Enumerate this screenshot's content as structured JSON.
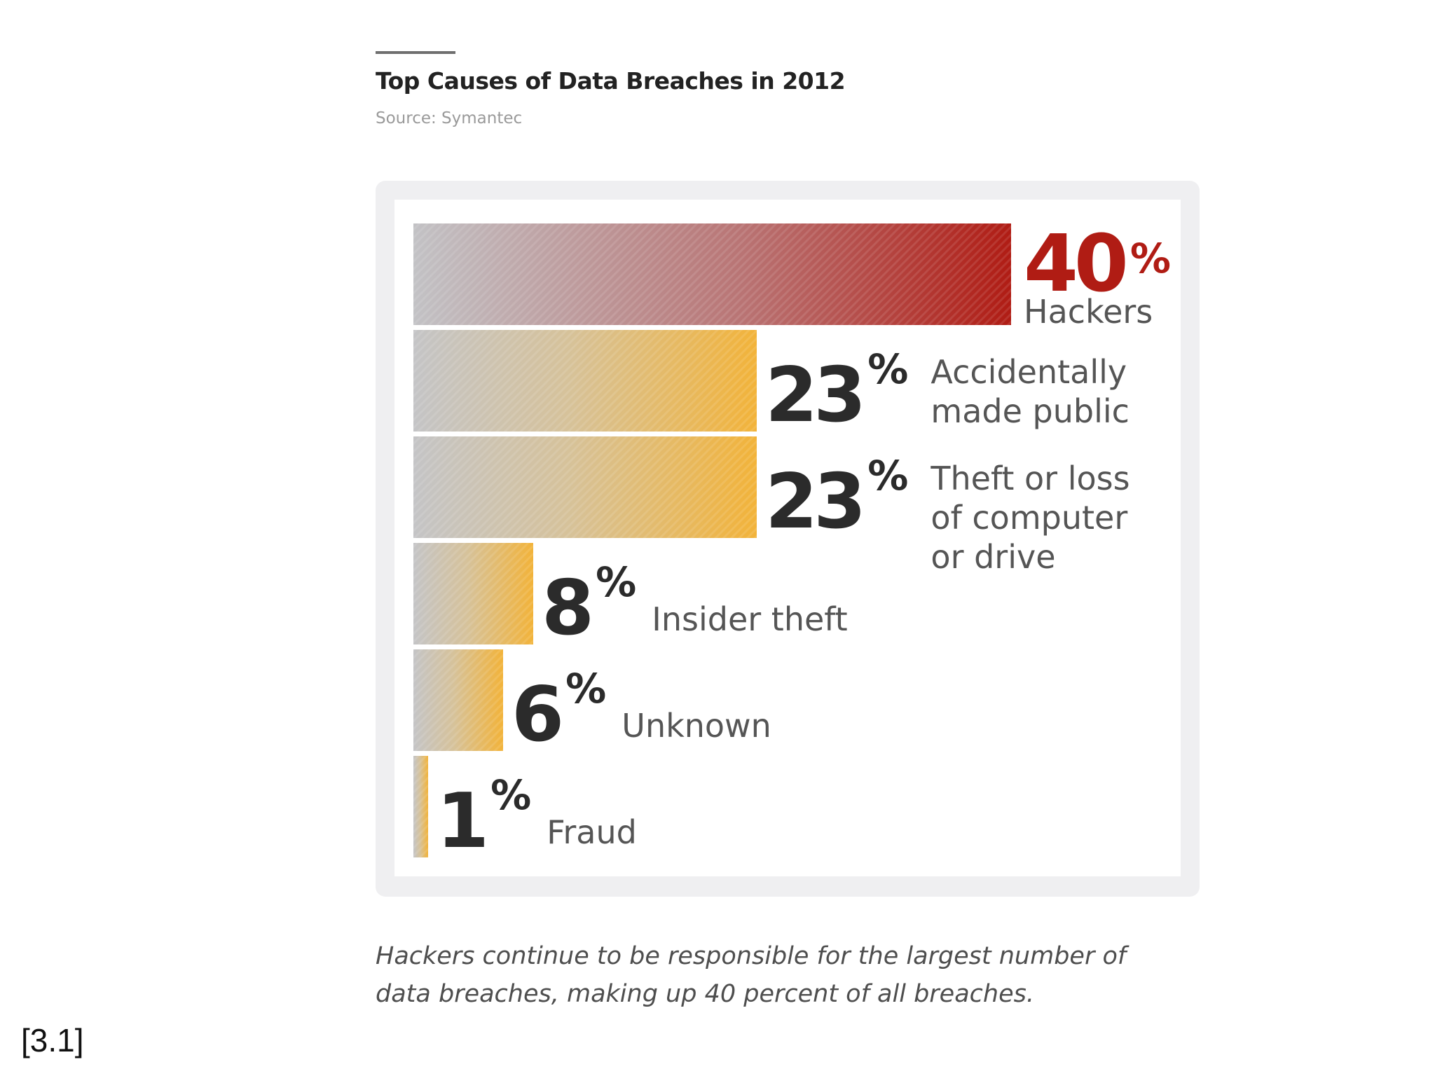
{
  "colors": {
    "hackers_start": "#c2c2c5",
    "hackers_end": "#b01c14",
    "other_start": "#c4c4c6",
    "other_end": "#f2b33a",
    "highlight_text": "#b01c14",
    "value_text": "#2b2b2b",
    "label_text": "#555555",
    "frame": "#efeff1"
  },
  "chart_data": {
    "type": "bar",
    "orientation": "horizontal",
    "title": "Top Causes of Data Breaches in 2012",
    "subtitle": "Source: Symantec",
    "categories": [
      "Hackers",
      "Accidentally made public",
      "Theft or loss of computer or drive",
      "Insider theft",
      "Unknown",
      "Fraud"
    ],
    "values": [
      40,
      23,
      23,
      8,
      6,
      1
    ],
    "unit": "%",
    "highlight_index": 0,
    "value_labels": [
      "40",
      "23",
      "23",
      "8",
      "6",
      "1"
    ],
    "percent_sign": "%",
    "category_lines": [
      [
        "Hackers"
      ],
      [
        "Accidentally",
        "made public"
      ],
      [
        "Theft or loss",
        "of computer",
        "or drive"
      ],
      [
        "Insider theft"
      ],
      [
        "Unknown"
      ],
      [
        "Fraud"
      ]
    ],
    "xlim": [
      0,
      40
    ],
    "grid": false,
    "legend": "none",
    "caption_lines": [
      "Hackers continue to be responsible for the largest number of",
      "data breaches, making up 40 percent of all breaches."
    ]
  },
  "figure_ref": "[3.1]"
}
